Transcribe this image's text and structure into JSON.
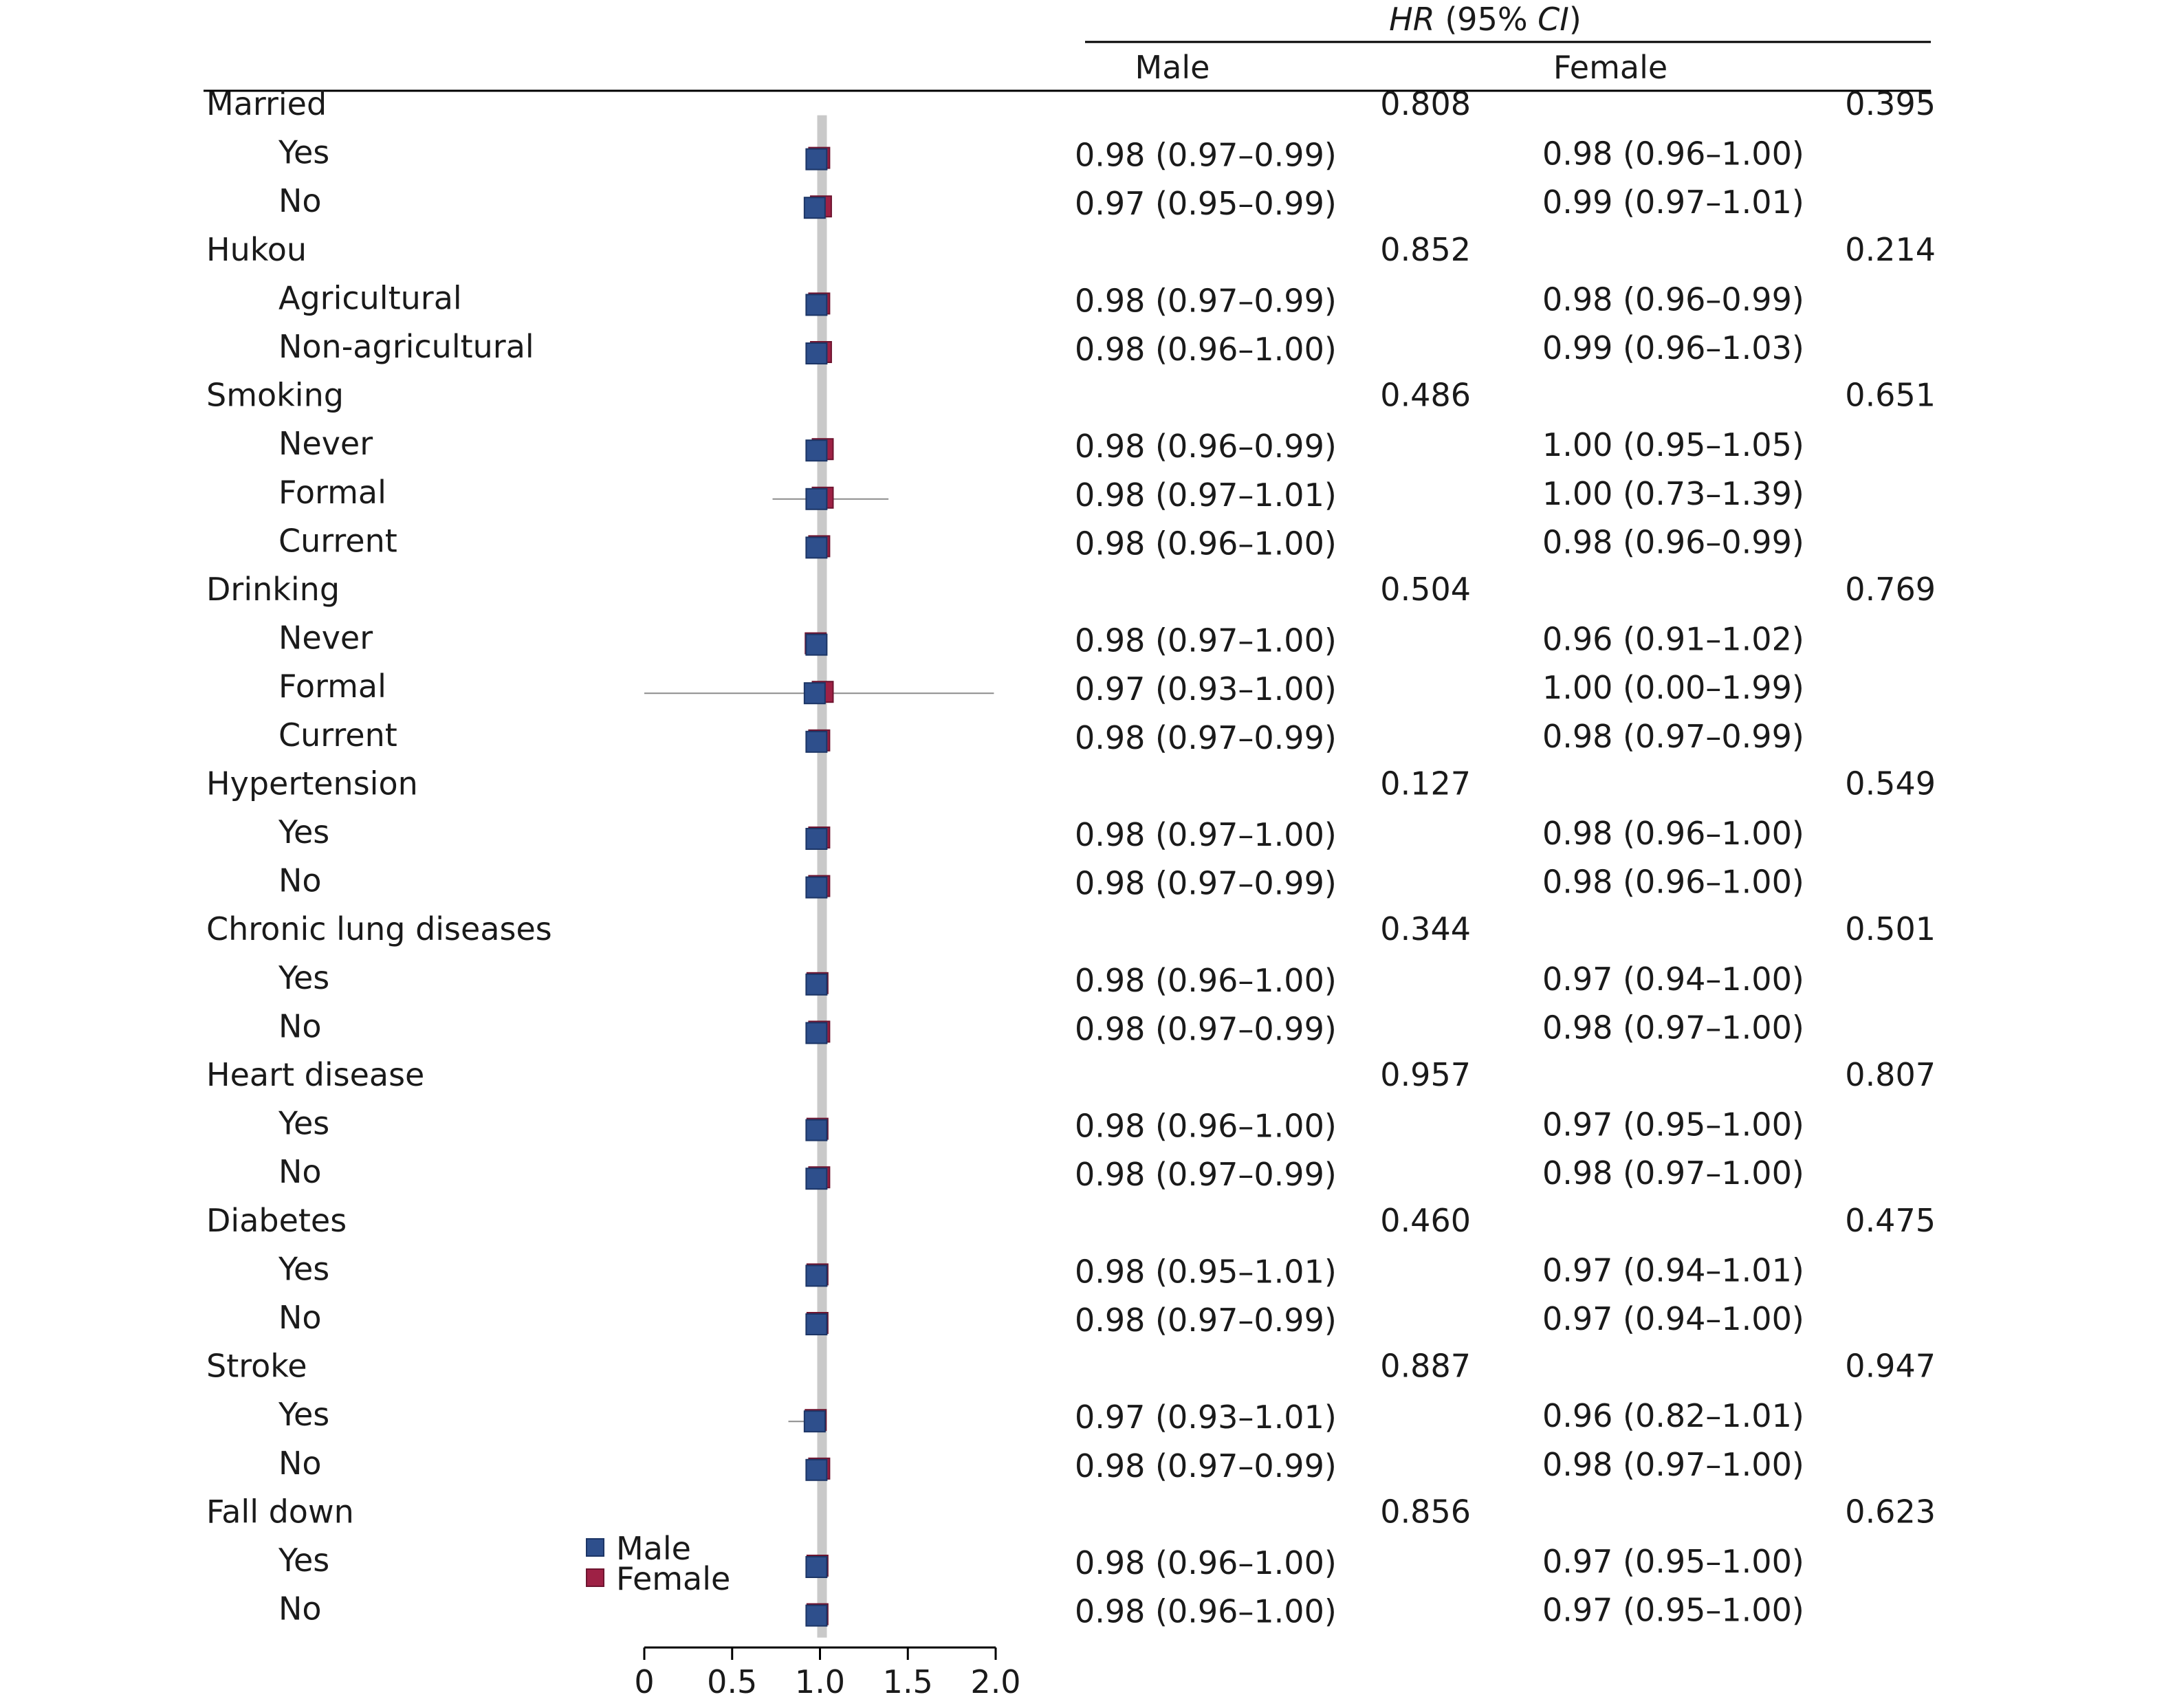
{
  "chart_data": {
    "type": "forest",
    "header": {
      "hr_italic": "HR",
      "ci_prefix": " (95% ",
      "ci_italic": "CI",
      "ci_suffix": ")"
    },
    "columns": [
      "Male",
      "Female"
    ],
    "x": {
      "ticks": [
        0,
        0.5,
        1.0,
        1.5,
        2.0
      ],
      "tick_labels": [
        "0",
        "0.5",
        "1.0",
        "1.5",
        "2.0"
      ],
      "range": [
        0,
        2.0
      ],
      "reference": 1.0
    },
    "legend": {
      "position": "bottom-left",
      "items": [
        {
          "name": "Male",
          "color": "#2E4F8C"
        },
        {
          "name": "Female",
          "color": "#9E2145"
        }
      ]
    },
    "colors": {
      "male": "#2E4F8C",
      "female": "#9E2145",
      "reference_line": "#c9c9c9",
      "ci": "#8c8c8c"
    },
    "rows": [
      {
        "label": "Married",
        "indent": false,
        "p_male": "0.808",
        "p_female": "0.395"
      },
      {
        "label": "Yes",
        "indent": true,
        "male": {
          "hr": 0.98,
          "lo": 0.97,
          "hi": 0.99,
          "text": "0.98 (0.97–0.99)"
        },
        "female": {
          "hr": 0.98,
          "lo": 0.96,
          "hi": 1.0,
          "text": "0.98 (0.96–1.00)"
        }
      },
      {
        "label": "No",
        "indent": true,
        "male": {
          "hr": 0.97,
          "lo": 0.95,
          "hi": 0.99,
          "text": "0.97 (0.95–0.99)"
        },
        "female": {
          "hr": 0.99,
          "lo": 0.97,
          "hi": 1.01,
          "text": "0.99 (0.97–1.01)"
        }
      },
      {
        "label": "Hukou",
        "indent": false,
        "p_male": "0.852",
        "p_female": "0.214"
      },
      {
        "label": "Agricultural",
        "indent": true,
        "male": {
          "hr": 0.98,
          "lo": 0.97,
          "hi": 0.99,
          "text": "0.98 (0.97–0.99)"
        },
        "female": {
          "hr": 0.98,
          "lo": 0.96,
          "hi": 0.99,
          "text": "0.98 (0.96–0.99)"
        }
      },
      {
        "label": "Non-agricultural",
        "indent": true,
        "male": {
          "hr": 0.98,
          "lo": 0.96,
          "hi": 1.0,
          "text": "0.98 (0.96–1.00)"
        },
        "female": {
          "hr": 0.99,
          "lo": 0.96,
          "hi": 1.03,
          "text": "0.99 (0.96–1.03)"
        }
      },
      {
        "label": "Smoking",
        "indent": false,
        "p_male": "0.486",
        "p_female": "0.651"
      },
      {
        "label": "Never",
        "indent": true,
        "male": {
          "hr": 0.98,
          "lo": 0.96,
          "hi": 0.99,
          "text": "0.98 (0.96–0.99)"
        },
        "female": {
          "hr": 1.0,
          "lo": 0.95,
          "hi": 1.05,
          "text": "1.00 (0.95–1.05)"
        }
      },
      {
        "label": "Formal",
        "indent": true,
        "male": {
          "hr": 0.98,
          "lo": 0.97,
          "hi": 1.01,
          "text": "0.98 (0.97–1.01)"
        },
        "female": {
          "hr": 1.0,
          "lo": 0.73,
          "hi": 1.39,
          "text": "1.00 (0.73–1.39)"
        }
      },
      {
        "label": "Current",
        "indent": true,
        "male": {
          "hr": 0.98,
          "lo": 0.96,
          "hi": 1.0,
          "text": "0.98 (0.96–1.00)"
        },
        "female": {
          "hr": 0.98,
          "lo": 0.96,
          "hi": 0.99,
          "text": "0.98 (0.96–0.99)"
        }
      },
      {
        "label": "Drinking",
        "indent": false,
        "p_male": "0.504",
        "p_female": "0.769"
      },
      {
        "label": "Never",
        "indent": true,
        "male": {
          "hr": 0.98,
          "lo": 0.97,
          "hi": 1.0,
          "text": "0.98 (0.97–1.00)"
        },
        "female": {
          "hr": 0.96,
          "lo": 0.91,
          "hi": 1.02,
          "text": "0.96 (0.91–1.02)"
        }
      },
      {
        "label": "Formal",
        "indent": true,
        "male": {
          "hr": 0.97,
          "lo": 0.93,
          "hi": 1.0,
          "text": "0.97 (0.93–1.00)"
        },
        "female": {
          "hr": 1.0,
          "lo": 0.0,
          "hi": 1.99,
          "text": "1.00 (0.00–1.99)"
        }
      },
      {
        "label": "Current",
        "indent": true,
        "male": {
          "hr": 0.98,
          "lo": 0.97,
          "hi": 0.99,
          "text": "0.98 (0.97–0.99)"
        },
        "female": {
          "hr": 0.98,
          "lo": 0.97,
          "hi": 0.99,
          "text": "0.98 (0.97–0.99)"
        }
      },
      {
        "label": "Hypertension",
        "indent": false,
        "p_male": "0.127",
        "p_female": "0.549"
      },
      {
        "label": "Yes",
        "indent": true,
        "male": {
          "hr": 0.98,
          "lo": 0.97,
          "hi": 1.0,
          "text": "0.98 (0.97–1.00)"
        },
        "female": {
          "hr": 0.98,
          "lo": 0.96,
          "hi": 1.0,
          "text": "0.98 (0.96–1.00)"
        }
      },
      {
        "label": "No",
        "indent": true,
        "male": {
          "hr": 0.98,
          "lo": 0.97,
          "hi": 0.99,
          "text": "0.98 (0.97–0.99)"
        },
        "female": {
          "hr": 0.98,
          "lo": 0.96,
          "hi": 1.0,
          "text": "0.98 (0.96–1.00)"
        }
      },
      {
        "label": "Chronic lung diseases",
        "indent": false,
        "p_male": "0.344",
        "p_female": "0.501"
      },
      {
        "label": "Yes",
        "indent": true,
        "male": {
          "hr": 0.98,
          "lo": 0.96,
          "hi": 1.0,
          "text": "0.98 (0.96–1.00)"
        },
        "female": {
          "hr": 0.97,
          "lo": 0.94,
          "hi": 1.0,
          "text": "0.97 (0.94–1.00)"
        }
      },
      {
        "label": "No",
        "indent": true,
        "male": {
          "hr": 0.98,
          "lo": 0.97,
          "hi": 0.99,
          "text": "0.98 (0.97–0.99)"
        },
        "female": {
          "hr": 0.98,
          "lo": 0.97,
          "hi": 1.0,
          "text": "0.98 (0.97–1.00)"
        }
      },
      {
        "label": "Heart disease",
        "indent": false,
        "p_male": "0.957",
        "p_female": "0.807"
      },
      {
        "label": "Yes",
        "indent": true,
        "male": {
          "hr": 0.98,
          "lo": 0.96,
          "hi": 1.0,
          "text": "0.98 (0.96–1.00)"
        },
        "female": {
          "hr": 0.97,
          "lo": 0.95,
          "hi": 1.0,
          "text": "0.97 (0.95–1.00)"
        }
      },
      {
        "label": "No",
        "indent": true,
        "male": {
          "hr": 0.98,
          "lo": 0.97,
          "hi": 0.99,
          "text": "0.98 (0.97–0.99)"
        },
        "female": {
          "hr": 0.98,
          "lo": 0.97,
          "hi": 1.0,
          "text": "0.98 (0.97–1.00)"
        }
      },
      {
        "label": "Diabetes",
        "indent": false,
        "p_male": "0.460",
        "p_female": "0.475"
      },
      {
        "label": "Yes",
        "indent": true,
        "male": {
          "hr": 0.98,
          "lo": 0.95,
          "hi": 1.01,
          "text": "0.98 (0.95–1.01)"
        },
        "female": {
          "hr": 0.97,
          "lo": 0.94,
          "hi": 1.01,
          "text": "0.97 (0.94–1.01)"
        }
      },
      {
        "label": "No",
        "indent": true,
        "male": {
          "hr": 0.98,
          "lo": 0.97,
          "hi": 0.99,
          "text": "0.98 (0.97–0.99)"
        },
        "female": {
          "hr": 0.97,
          "lo": 0.94,
          "hi": 1.0,
          "text": "0.97 (0.94–1.00)"
        }
      },
      {
        "label": "Stroke",
        "indent": false,
        "p_male": "0.887",
        "p_female": "0.947"
      },
      {
        "label": "Yes",
        "indent": true,
        "male": {
          "hr": 0.97,
          "lo": 0.93,
          "hi": 1.01,
          "text": "0.97 (0.93–1.01)"
        },
        "female": {
          "hr": 0.96,
          "lo": 0.82,
          "hi": 1.01,
          "text": "0.96 (0.82–1.01)"
        }
      },
      {
        "label": "No",
        "indent": true,
        "male": {
          "hr": 0.98,
          "lo": 0.97,
          "hi": 0.99,
          "text": "0.98 (0.97–0.99)"
        },
        "female": {
          "hr": 0.98,
          "lo": 0.97,
          "hi": 1.0,
          "text": "0.98 (0.97–1.00)"
        }
      },
      {
        "label": "Fall down",
        "indent": false,
        "p_male": "0.856",
        "p_female": "0.623"
      },
      {
        "label": "Yes",
        "indent": true,
        "male": {
          "hr": 0.98,
          "lo": 0.96,
          "hi": 1.0,
          "text": "0.98 (0.96–1.00)"
        },
        "female": {
          "hr": 0.97,
          "lo": 0.95,
          "hi": 1.0,
          "text": "0.97 (0.95–1.00)"
        }
      },
      {
        "label": "No",
        "indent": true,
        "male": {
          "hr": 0.98,
          "lo": 0.96,
          "hi": 1.0,
          "text": "0.98 (0.96–1.00)"
        },
        "female": {
          "hr": 0.97,
          "lo": 0.95,
          "hi": 1.0,
          "text": "0.97 (0.95–1.00)"
        }
      }
    ]
  }
}
